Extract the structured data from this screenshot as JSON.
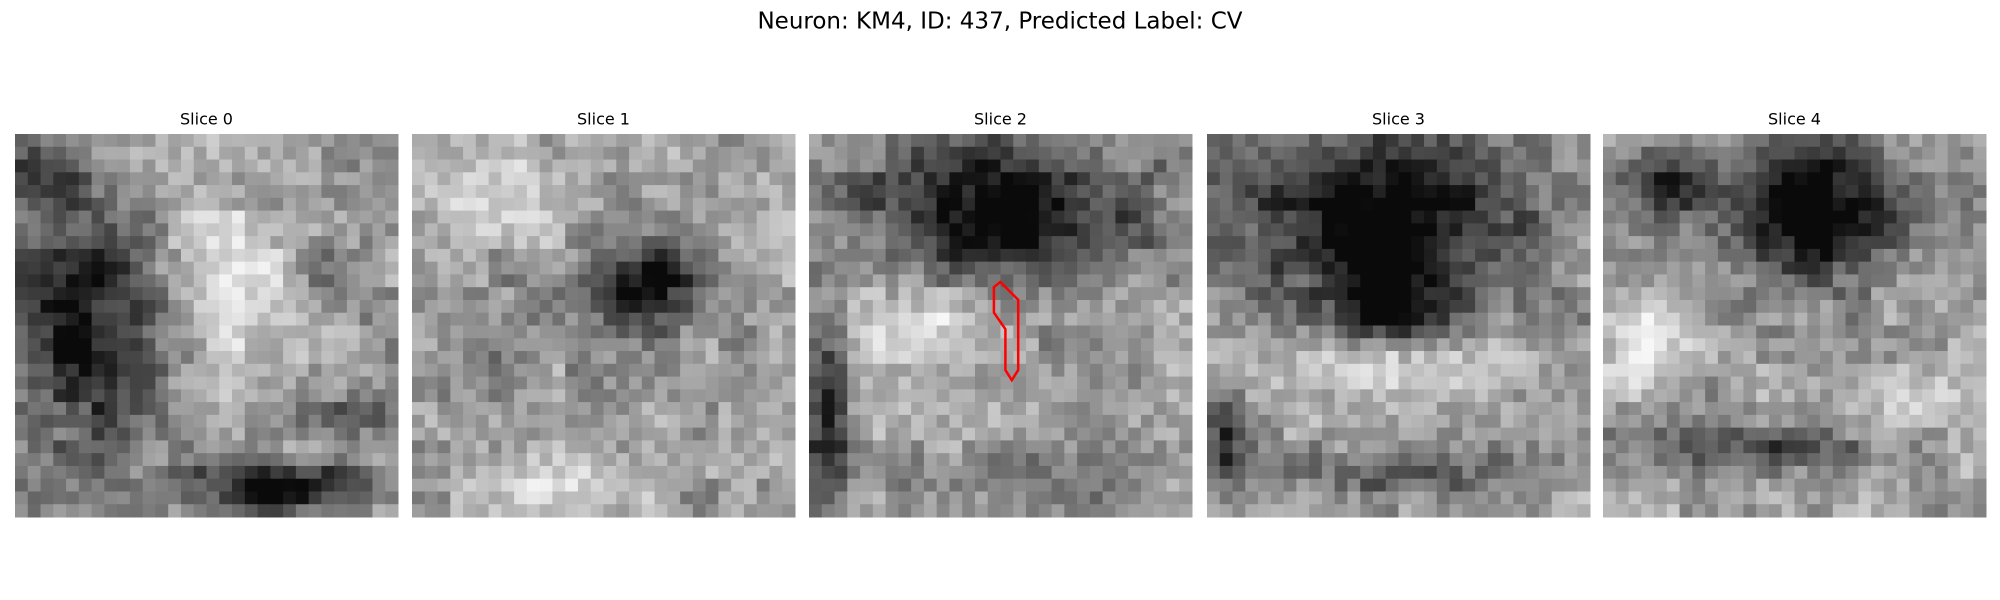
{
  "title": "Neuron: KM4, ID: 437, Predicted Label: CV",
  "slices": [
    {
      "title": "Slice 0"
    },
    {
      "title": "Slice 1"
    },
    {
      "title": "Slice 2"
    },
    {
      "title": "Slice 3"
    },
    {
      "title": "Slice 4"
    }
  ]
}
